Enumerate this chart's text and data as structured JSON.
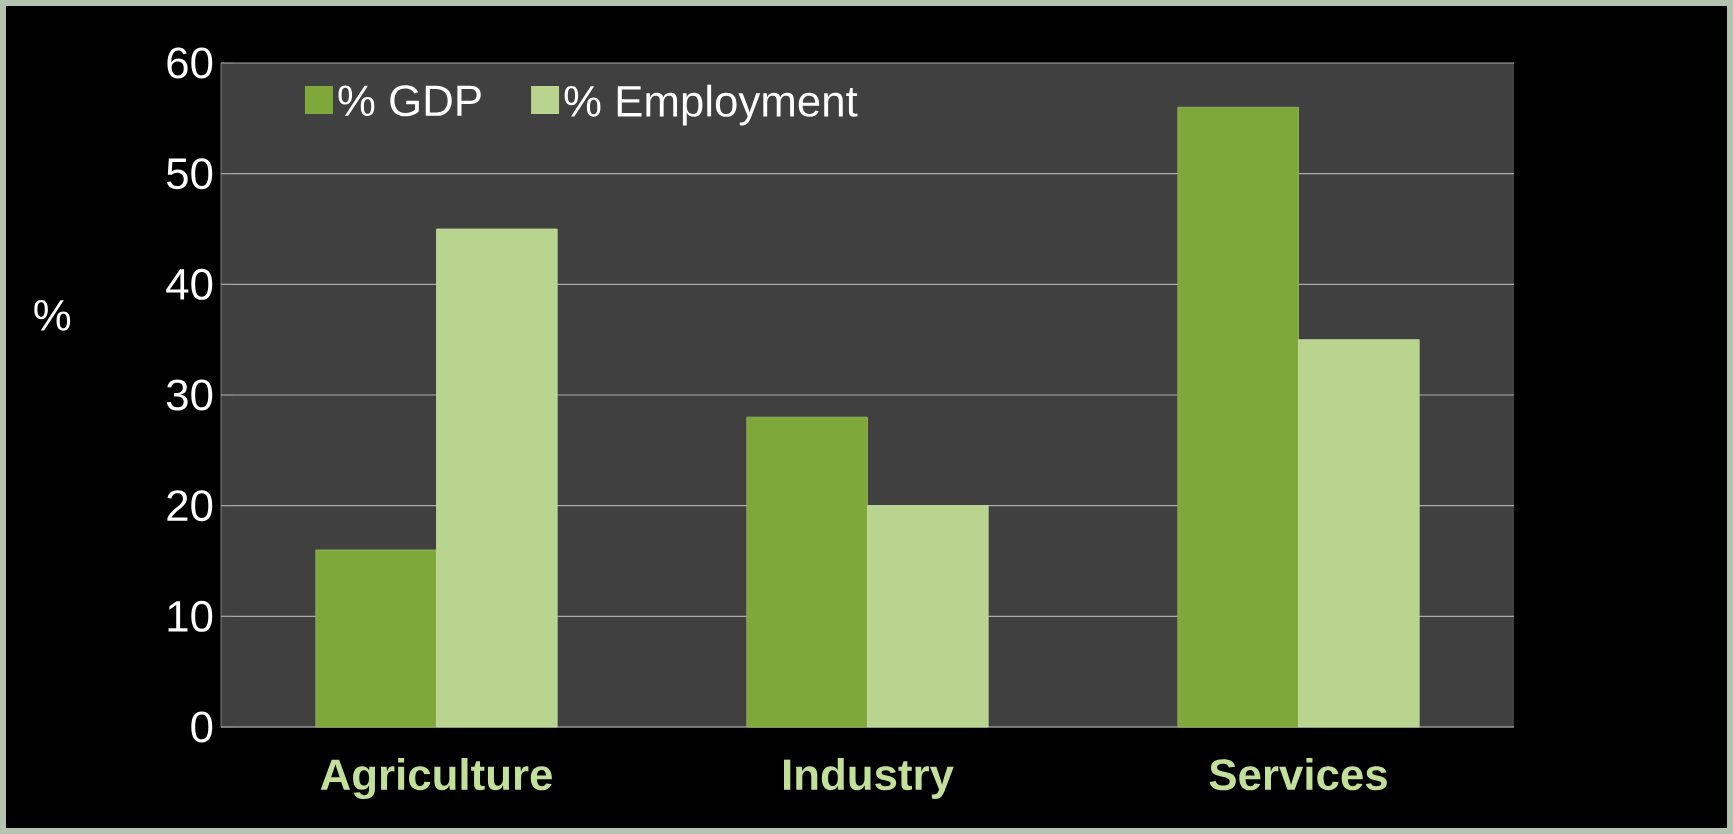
{
  "chart_data": {
    "type": "bar",
    "ylabel": "%",
    "categories": [
      "Agriculture",
      "Industry",
      "Services"
    ],
    "series": [
      {
        "name": "% GDP",
        "color": "#7fa83a",
        "values": [
          16,
          28,
          56
        ]
      },
      {
        "name": "% Employment",
        "color": "#b8d48f",
        "values": [
          45,
          20,
          35
        ]
      }
    ],
    "ylim": [
      0,
      60
    ],
    "yticks": [
      0,
      10,
      20,
      30,
      40,
      50,
      60
    ],
    "grid": "y",
    "legend": "top left"
  }
}
